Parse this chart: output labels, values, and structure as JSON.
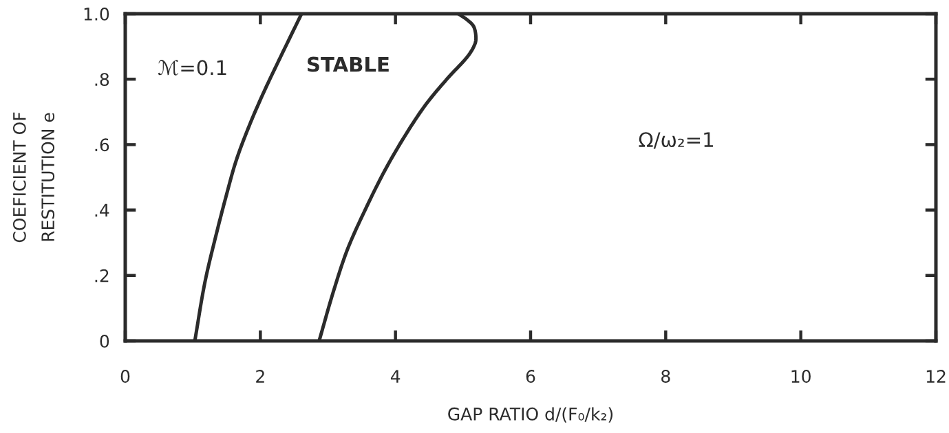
{
  "chart_data": {
    "type": "line",
    "xlabel": "GAP RATIO d/(F₀/k₂)",
    "ylabel": "COEFICIENT OF\nRESTITUTION e",
    "series": [
      {
        "color": "#2b2b2b",
        "x": [
          1.03,
          1.18,
          1.34,
          1.49,
          1.64,
          1.84,
          2.05,
          2.28,
          2.61
        ],
        "values": [
          0,
          0.18,
          0.32,
          0.44,
          0.55,
          0.66,
          0.76,
          0.86,
          1.0
        ]
      },
      {
        "color": "#2b2b2b",
        "x": [
          2.87,
          3.08,
          3.29,
          3.55,
          3.84,
          4.12,
          4.44,
          4.76,
          5.07,
          5.16,
          5.19,
          5.16,
          5.07,
          4.93
        ],
        "values": [
          0,
          0.15,
          0.28,
          0.4,
          0.52,
          0.62,
          0.72,
          0.8,
          0.87,
          0.9,
          0.92,
          0.96,
          0.98,
          1.0
        ]
      }
    ],
    "xlim": [
      0,
      12
    ],
    "xticks": [
      0,
      2,
      4,
      6,
      8,
      10,
      12
    ],
    "ylim": [
      0,
      1
    ],
    "yticks": [
      {
        "value": 0,
        "label": "0"
      },
      {
        "value": 0.2,
        "label": ".2"
      },
      {
        "value": 0.4,
        "label": ".4"
      },
      {
        "value": 0.6,
        "label": ".6"
      },
      {
        "value": 0.8,
        "label": ".8"
      },
      {
        "value": 1,
        "label": "1.0"
      }
    ],
    "line_style": "solid",
    "annotations": [
      "ℳ=0.1",
      "STABLE",
      "Ω/ω₂=1"
    ]
  }
}
